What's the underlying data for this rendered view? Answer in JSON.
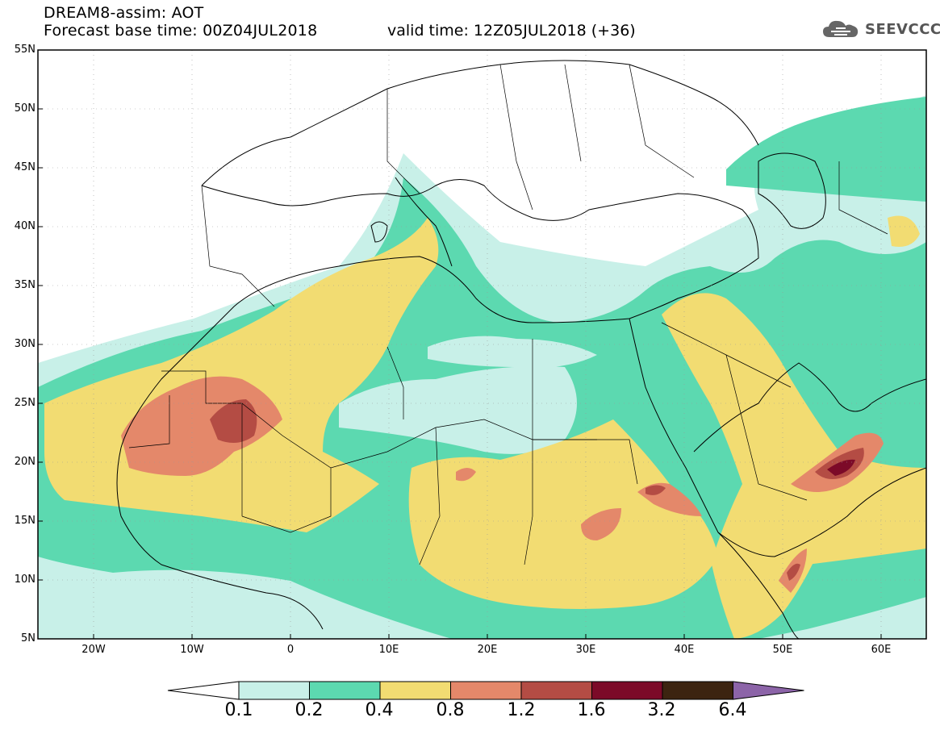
{
  "header": {
    "line1": "DREAM8-assim: AOT",
    "line2": "Forecast base time: 00Z04JUL2018",
    "valid": "valid time: 12Z05JUL2018 (+36)",
    "logo_text": "SEEVCCC"
  },
  "map": {
    "lon_range": [
      -25,
      65
    ],
    "lat_range": [
      5,
      55
    ],
    "y_ticks": [
      "55N",
      "50N",
      "45N",
      "40N",
      "35N",
      "30N",
      "25N",
      "20N",
      "15N",
      "10N",
      "5N"
    ],
    "x_ticks": [
      "20W",
      "10W",
      "0",
      "10E",
      "20E",
      "30E",
      "40E",
      "50E",
      "60E"
    ],
    "variable": "AOT"
  },
  "colorbar": {
    "levels": [
      "0.1",
      "0.2",
      "0.4",
      "0.8",
      "1.2",
      "1.6",
      "3.2",
      "6.4"
    ],
    "colors": [
      "#ffffff",
      "#c8f0e8",
      "#5cd9b0",
      "#f2dc72",
      "#e4886a",
      "#b44c44",
      "#7c0a28",
      "#3c2410",
      "#8c64a8"
    ]
  }
}
